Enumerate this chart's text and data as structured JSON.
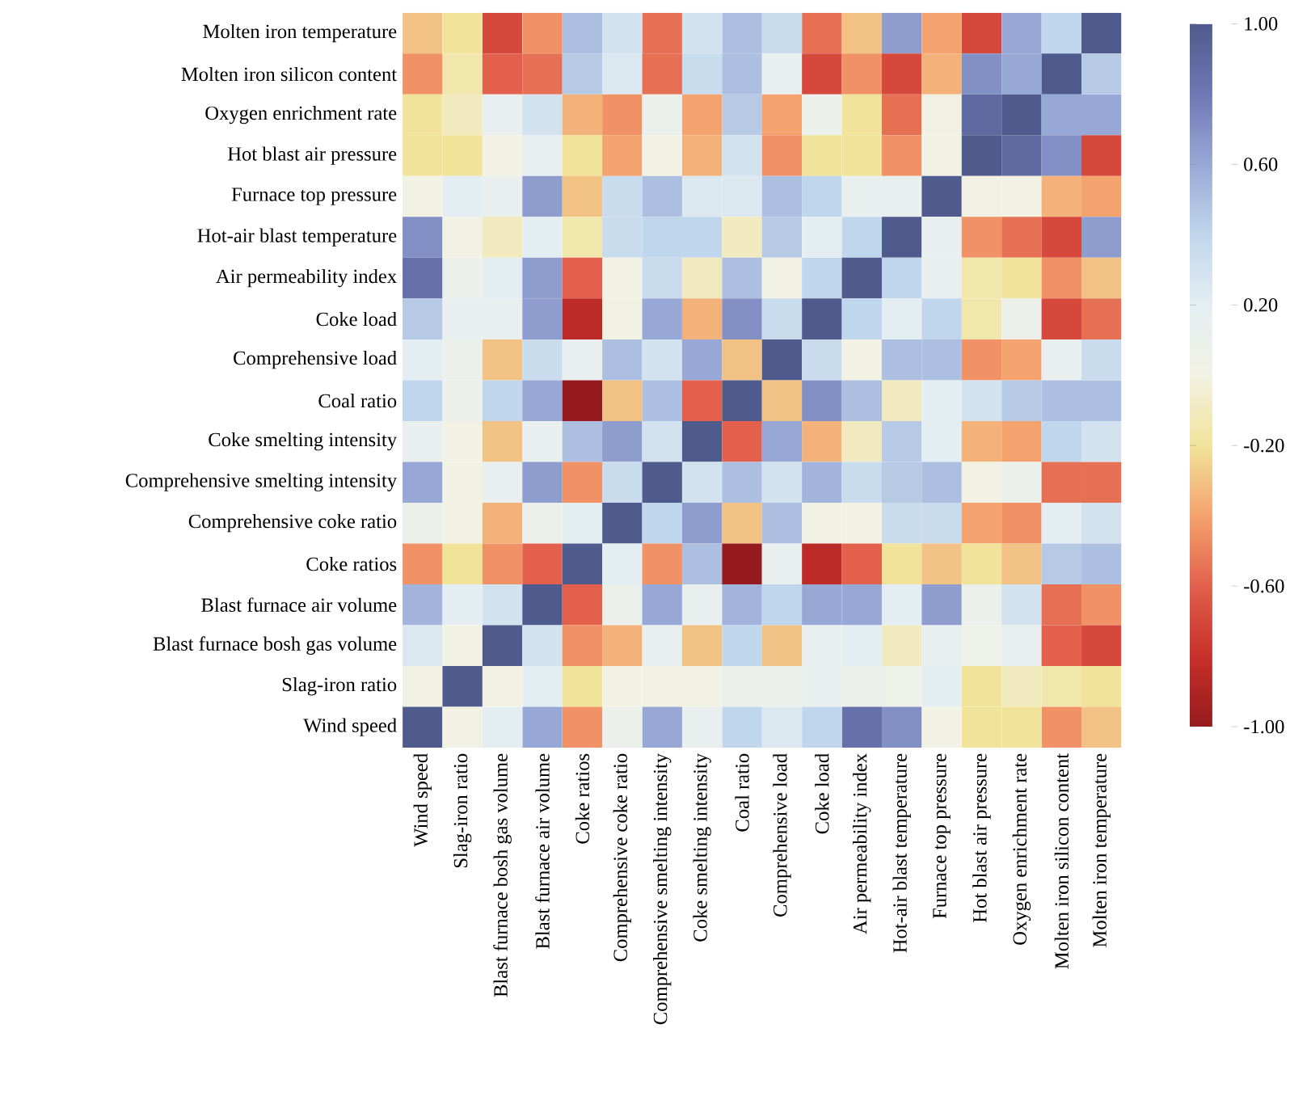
{
  "chart_data": {
    "type": "heatmap",
    "categories": [
      "Wind speed",
      "Slag-iron ratio",
      "Blast furnace bosh gas volume",
      "Blast furnace air volume",
      "Coke ratios",
      "Comprehensive coke ratio",
      "Comprehensive smelting intensity",
      "Coke smelting intensity",
      "Coal ratio",
      "Comprehensive load",
      "Coke load",
      "Air permeability index",
      "Hot-air blast temperature",
      "Furnace top pressure",
      "Hot blast air pressure",
      "Oxygen enrichment rate",
      "Molten iron silicon content",
      "Molten iron temperature"
    ],
    "y_categories": [
      "Molten iron temperature",
      "Molten iron silicon content",
      "Oxygen enrichment rate",
      "Hot blast air pressure",
      "Furnace top pressure",
      "Hot-air blast temperature",
      "Air permeability index",
      "Coke load",
      "Comprehensive load",
      "Coal ratio",
      "Coke smelting intensity",
      "Comprehensive smelting intensity",
      "Comprehensive coke ratio",
      "Coke ratios",
      "Blast furnace air volume",
      "Blast furnace bosh gas volume",
      "Slag-iron ratio",
      "Wind speed"
    ],
    "cells": [
      [
        -0.3,
        -0.2,
        -0.7,
        -0.45,
        0.5,
        0.3,
        -0.55,
        0.3,
        0.5,
        0.35,
        -0.55,
        -0.3,
        0.65,
        -0.4,
        -0.7,
        0.6,
        0.4,
        1.0
      ],
      [
        -0.45,
        -0.15,
        -0.6,
        -0.55,
        0.45,
        0.25,
        -0.55,
        0.35,
        0.5,
        0.15,
        -0.7,
        -0.45,
        -0.7,
        -0.35,
        0.7,
        0.6,
        1.0,
        0.45
      ],
      [
        -0.2,
        -0.1,
        0.15,
        0.3,
        -0.35,
        -0.45,
        0.1,
        -0.4,
        0.45,
        -0.4,
        0.1,
        -0.2,
        -0.55,
        0.0,
        0.9,
        1.0,
        0.6,
        0.6
      ],
      [
        -0.2,
        -0.2,
        0.0,
        0.15,
        -0.2,
        -0.4,
        0.0,
        -0.35,
        0.3,
        -0.45,
        -0.2,
        -0.2,
        -0.45,
        0.0,
        1.0,
        0.9,
        0.7,
        -0.7
      ],
      [
        0.0,
        0.2,
        0.15,
        0.65,
        -0.3,
        0.35,
        0.5,
        0.25,
        0.25,
        0.5,
        0.4,
        0.15,
        0.15,
        1.0,
        0.0,
        0.0,
        -0.35,
        -0.4
      ],
      [
        0.7,
        0.0,
        -0.1,
        0.2,
        -0.15,
        0.35,
        0.4,
        0.4,
        -0.1,
        0.45,
        0.2,
        0.4,
        1.0,
        0.15,
        -0.45,
        -0.55,
        -0.7,
        0.65
      ],
      [
        0.85,
        0.1,
        0.2,
        0.65,
        -0.6,
        0.0,
        0.35,
        -0.1,
        0.5,
        0.0,
        0.4,
        1.0,
        0.4,
        0.15,
        -0.15,
        -0.2,
        -0.45,
        -0.3
      ],
      [
        0.45,
        0.15,
        0.15,
        0.65,
        -0.85,
        0.0,
        0.6,
        -0.35,
        0.7,
        0.35,
        1.0,
        0.4,
        0.2,
        0.4,
        -0.15,
        0.1,
        -0.7,
        -0.55
      ],
      [
        0.2,
        0.1,
        -0.3,
        0.35,
        0.15,
        0.5,
        0.3,
        0.6,
        -0.3,
        1.0,
        0.35,
        0.0,
        0.5,
        0.5,
        -0.45,
        -0.4,
        0.15,
        0.35
      ],
      [
        0.4,
        0.1,
        0.4,
        0.6,
        -1.0,
        -0.3,
        0.5,
        -0.6,
        1.0,
        -0.3,
        0.7,
        0.5,
        -0.1,
        0.2,
        0.3,
        0.45,
        0.5,
        0.5
      ],
      [
        0.15,
        0.0,
        -0.3,
        0.15,
        0.5,
        0.65,
        0.3,
        1.0,
        -0.6,
        0.6,
        -0.35,
        -0.1,
        0.45,
        0.2,
        -0.35,
        -0.4,
        0.4,
        0.3
      ],
      [
        0.6,
        0.0,
        0.15,
        0.65,
        -0.45,
        0.35,
        1.0,
        0.3,
        0.5,
        0.3,
        0.55,
        0.35,
        0.45,
        0.5,
        0.0,
        0.1,
        -0.55,
        -0.55
      ],
      [
        0.1,
        0.0,
        -0.35,
        0.1,
        0.2,
        1.0,
        0.4,
        0.65,
        -0.3,
        0.5,
        0.0,
        0.0,
        0.35,
        0.35,
        -0.4,
        -0.45,
        0.2,
        0.3
      ],
      [
        -0.45,
        -0.2,
        -0.45,
        -0.6,
        1.0,
        0.2,
        -0.45,
        0.5,
        -1.0,
        0.15,
        -0.85,
        -0.6,
        -0.2,
        -0.3,
        -0.2,
        -0.3,
        0.45,
        0.5
      ],
      [
        0.55,
        0.2,
        0.3,
        1.0,
        -0.6,
        0.1,
        0.6,
        0.15,
        0.55,
        0.4,
        0.6,
        0.6,
        0.2,
        0.65,
        0.1,
        0.3,
        -0.55,
        -0.45
      ],
      [
        0.25,
        0.0,
        1.0,
        0.3,
        -0.45,
        -0.35,
        0.15,
        -0.3,
        0.4,
        -0.3,
        0.15,
        0.2,
        -0.1,
        0.15,
        0.05,
        0.15,
        -0.6,
        -0.7
      ],
      [
        0.0,
        1.0,
        0.0,
        0.2,
        -0.2,
        0.0,
        0.0,
        0.0,
        0.1,
        0.1,
        0.15,
        0.1,
        0.05,
        0.2,
        -0.2,
        -0.1,
        -0.15,
        -0.2
      ],
      [
        1.0,
        0.0,
        0.2,
        0.6,
        -0.45,
        0.1,
        0.6,
        0.15,
        0.4,
        0.25,
        0.4,
        0.85,
        0.7,
        0.0,
        -0.2,
        -0.2,
        -0.45,
        -0.3
      ]
    ],
    "clim": [
      -1.0,
      1.0
    ],
    "cticks": [
      {
        "value": 1.0,
        "label": "1.00"
      },
      {
        "value": 0.6,
        "label": "0.60"
      },
      {
        "value": 0.2,
        "label": "0.20"
      },
      {
        "value": -0.2,
        "label": "-0.20"
      },
      {
        "value": -0.6,
        "label": "-0.60"
      },
      {
        "value": -1.0,
        "label": "-1.00"
      }
    ]
  }
}
